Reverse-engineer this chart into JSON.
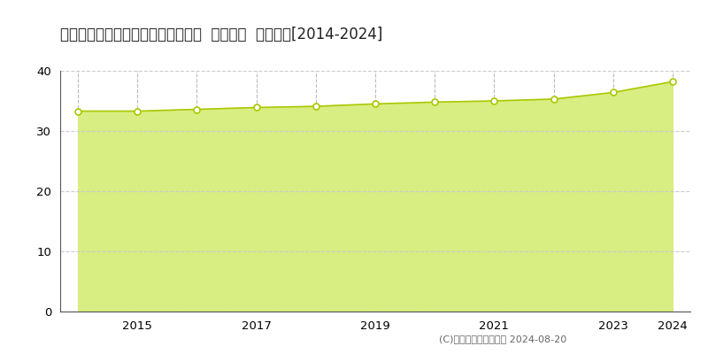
{
  "title": "岡山県倉敷市宮前字河間２６番４外  地価公示  地価推移[2014-2024]",
  "years": [
    2014,
    2015,
    2016,
    2017,
    2018,
    2019,
    2020,
    2021,
    2022,
    2023,
    2024
  ],
  "values": [
    33.3,
    33.3,
    33.6,
    33.9,
    34.1,
    34.5,
    34.8,
    35.0,
    35.3,
    36.4,
    38.2
  ],
  "ylim": [
    0,
    40
  ],
  "yticks": [
    0,
    10,
    20,
    30,
    40
  ],
  "xticks": [
    2015,
    2017,
    2019,
    2021,
    2023,
    2024
  ],
  "fill_color": "#d8ed82",
  "fill_alpha": 1.0,
  "line_color": "#aac800",
  "marker_facecolor": "#ffffff",
  "marker_edgecolor": "#aac800",
  "hgrid_color": "#cccccc",
  "vgrid_color": "#bbbbbb",
  "background_color": "#ffffff",
  "legend_square_color": "#c8de50",
  "copyright_text": "(C)土地価格ドットコム 2024-08-20",
  "title_fontsize": 12,
  "axis_fontsize": 9.5,
  "legend_fontsize": 9.5
}
